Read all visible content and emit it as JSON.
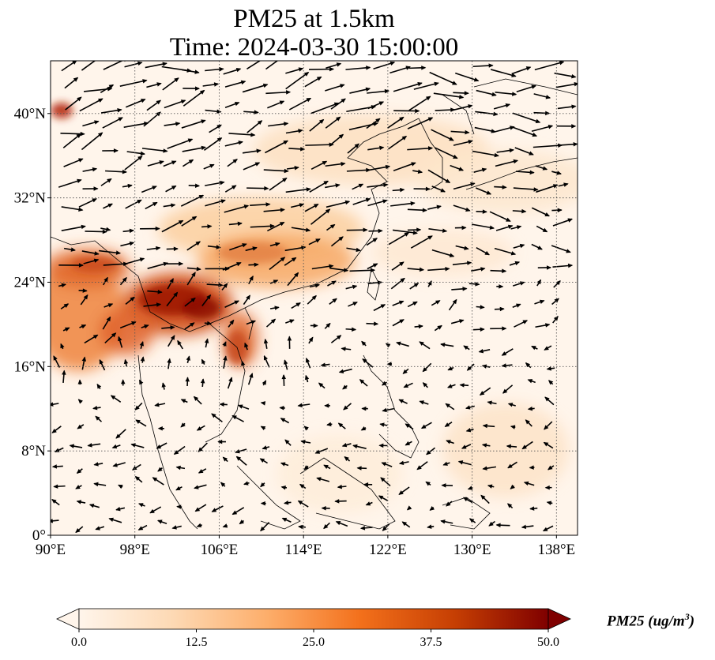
{
  "map": {
    "title_line1": "PM25 at 1.5km",
    "title_line2": "Time: 2024-03-30 15:00:00",
    "projection": "PlateCarree",
    "lon_range": [
      90,
      140
    ],
    "lat_range": [
      0,
      45
    ],
    "gridlines": "dotted",
    "lon_ticks": [
      "90°E",
      "98°E",
      "106°E",
      "114°E",
      "122°E",
      "130°E",
      "138°E"
    ],
    "lon_tick_values": [
      90,
      98,
      106,
      114,
      122,
      130,
      138
    ],
    "lat_ticks": [
      "0°",
      "8°N",
      "16°N",
      "24°N",
      "32°N",
      "40°N"
    ],
    "lat_tick_values": [
      0,
      8,
      16,
      24,
      32,
      40
    ],
    "variable": "PM25",
    "overlay": "wind vectors (black arrows)",
    "colormap": [
      "#fff5eb",
      "#fdd9b4",
      "#fdae6b",
      "#f3701b",
      "#c63f03",
      "#7f0000"
    ]
  },
  "colorbar": {
    "ticks": [
      "0.0",
      "12.5",
      "25.0",
      "37.5",
      "50.0"
    ],
    "tick_values": [
      0,
      12.5,
      25,
      37.5,
      50
    ],
    "range": [
      0,
      50
    ],
    "extend": "both",
    "label_text": "PM25 (ug/m",
    "label_sup": "3",
    "label_close": ")"
  }
}
